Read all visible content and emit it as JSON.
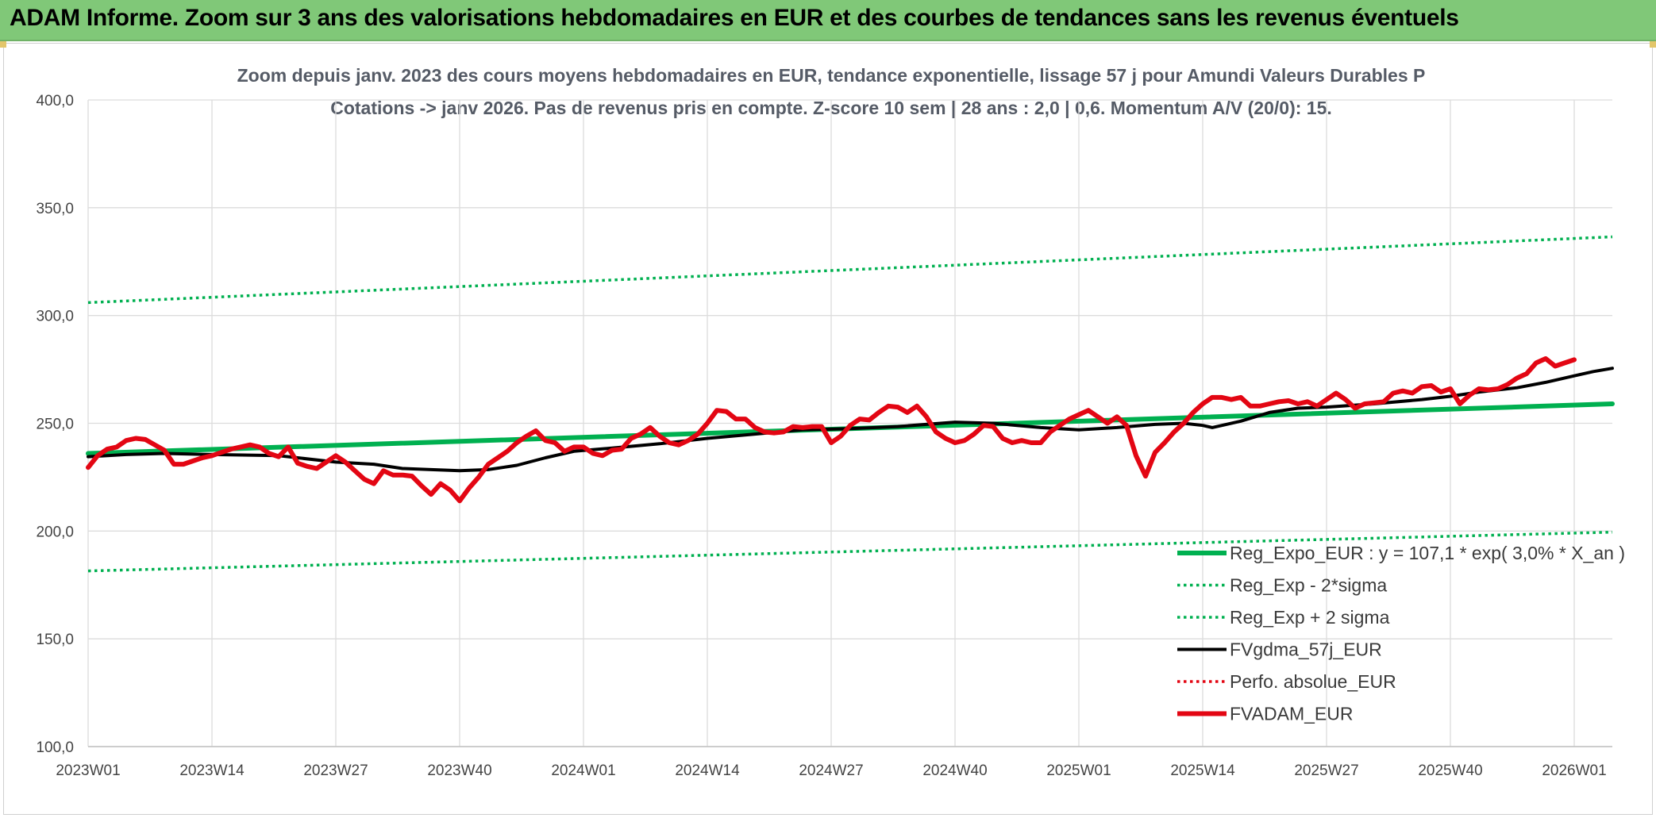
{
  "banner": {
    "title": "ADAM Informe. Zoom sur 3 ans des valorisations hebdomadaires en EUR et des courbes de tendances sans les revenus éventuels",
    "background": "#80c878"
  },
  "chart_data": {
    "type": "line",
    "title": "Zoom depuis janv. 2023 des cours moyens hebdomadaires en EUR, tendance exponentielle, lissage 57 j pour Amundi Valeurs Durables P",
    "subtitle": "Cotations -> janv 2026. Pas de revenus pris en compte. Z-score 10 sem | 28 ans : 2,0 | 0,6. Momentum A/V (20/0): 15.",
    "xlabel": "",
    "ylabel": "",
    "ylim": [
      100,
      400
    ],
    "grid": true,
    "y_ticks": [
      "400,0",
      "350,0",
      "300,0",
      "250,0",
      "200,0",
      "150,0",
      "100,0"
    ],
    "y_tick_values": [
      400,
      350,
      300,
      250,
      200,
      150,
      100
    ],
    "x_tick_labels": [
      "2023W01",
      "2023W14",
      "2023W27",
      "2023W40",
      "2024W01",
      "2024W14",
      "2024W27",
      "2024W40",
      "2025W01",
      "2025W14",
      "2025W27",
      "2025W40",
      "2026W01"
    ],
    "x_tick_weeks": [
      0,
      13,
      26,
      39,
      52,
      65,
      78,
      91,
      104,
      117,
      130,
      143,
      156
    ],
    "week_range": [
      0,
      160
    ],
    "legend_position": "bottom-right",
    "series": [
      {
        "name": "Reg_Expo_EUR : y = 107,1 * exp( 3,0% *  X_an )",
        "color": "#00b050",
        "style": "thick",
        "points": [
          [
            0,
            236.0
          ],
          [
            160,
            259.0
          ]
        ]
      },
      {
        "name": "Reg_Exp - 2*sigma",
        "color": "#00b050",
        "style": "dotted",
        "points": [
          [
            0,
            181.5
          ],
          [
            160,
            199.5
          ]
        ]
      },
      {
        "name": "Reg_Exp + 2 sigma",
        "color": "#00b050",
        "style": "dotted",
        "points": [
          [
            0,
            306.0
          ],
          [
            160,
            336.5
          ]
        ]
      },
      {
        "name": "FVgdma_57j_EUR",
        "color": "#000000",
        "style": "solid",
        "points": [
          [
            0,
            234.5
          ],
          [
            4,
            235.5
          ],
          [
            8,
            236.0
          ],
          [
            13,
            235.5
          ],
          [
            20,
            235.0
          ],
          [
            26,
            232.0
          ],
          [
            30,
            231.0
          ],
          [
            33,
            229.0
          ],
          [
            36,
            228.5
          ],
          [
            39,
            228.0
          ],
          [
            42,
            228.5
          ],
          [
            45,
            230.5
          ],
          [
            48,
            234.0
          ],
          [
            51,
            237.0
          ],
          [
            55,
            238.5
          ],
          [
            60,
            240.5
          ],
          [
            65,
            243.0
          ],
          [
            70,
            245.0
          ],
          [
            75,
            247.0
          ],
          [
            80,
            247.5
          ],
          [
            85,
            248.5
          ],
          [
            91,
            250.5
          ],
          [
            95,
            250.0
          ],
          [
            100,
            248.0
          ],
          [
            104,
            247.0
          ],
          [
            108,
            248.0
          ],
          [
            112,
            249.5
          ],
          [
            115,
            250.0
          ],
          [
            117,
            249.0
          ],
          [
            118,
            248.0
          ],
          [
            121,
            251.0
          ],
          [
            124,
            255.0
          ],
          [
            127,
            257.0
          ],
          [
            130,
            257.5
          ],
          [
            135,
            259.0
          ],
          [
            140,
            261.0
          ],
          [
            143,
            262.5
          ],
          [
            146,
            264.5
          ],
          [
            150,
            266.5
          ],
          [
            153,
            269.0
          ],
          [
            156,
            272.0
          ],
          [
            158,
            274.0
          ],
          [
            160,
            275.5
          ]
        ]
      },
      {
        "name": "Perfo. absolue_EUR",
        "color": "#e30613",
        "style": "dotted",
        "points": []
      },
      {
        "name": "FVADAM_EUR",
        "color": "#e30613",
        "style": "thick",
        "points": [
          [
            0,
            229.5
          ],
          [
            1,
            235.0
          ],
          [
            2,
            238.0
          ],
          [
            3,
            239.0
          ],
          [
            4,
            242.0
          ],
          [
            5,
            243.0
          ],
          [
            6,
            242.5
          ],
          [
            7,
            240.0
          ],
          [
            8,
            237.5
          ],
          [
            9,
            231.0
          ],
          [
            10,
            231.0
          ],
          [
            11,
            232.5
          ],
          [
            12,
            234.0
          ],
          [
            13,
            235.0
          ],
          [
            14,
            236.5
          ],
          [
            15,
            238.0
          ],
          [
            16,
            239.0
          ],
          [
            17,
            240.0
          ],
          [
            18,
            239.0
          ],
          [
            19,
            236.0
          ],
          [
            20,
            234.5
          ],
          [
            21,
            239.0
          ],
          [
            22,
            231.5
          ],
          [
            23,
            230.0
          ],
          [
            24,
            229.0
          ],
          [
            25,
            232.0
          ],
          [
            26,
            235.0
          ],
          [
            27,
            232.0
          ],
          [
            28,
            228.0
          ],
          [
            29,
            224.0
          ],
          [
            30,
            222.0
          ],
          [
            31,
            228.0
          ],
          [
            32,
            226.0
          ],
          [
            33,
            226.0
          ],
          [
            34,
            225.5
          ],
          [
            35,
            221.0
          ],
          [
            36,
            217.0
          ],
          [
            37,
            222.0
          ],
          [
            38,
            219.0
          ],
          [
            39,
            214.0
          ],
          [
            40,
            220.0
          ],
          [
            41,
            225.0
          ],
          [
            42,
            231.0
          ],
          [
            43,
            234.0
          ],
          [
            44,
            237.0
          ],
          [
            45,
            241.0
          ],
          [
            46,
            244.0
          ],
          [
            47,
            246.5
          ],
          [
            48,
            242.0
          ],
          [
            49,
            241.0
          ],
          [
            50,
            237.0
          ],
          [
            51,
            239.0
          ],
          [
            52,
            239.0
          ],
          [
            53,
            236.0
          ],
          [
            54,
            235.0
          ],
          [
            55,
            237.5
          ],
          [
            56,
            238.0
          ],
          [
            57,
            243.0
          ],
          [
            58,
            245.0
          ],
          [
            59,
            248.0
          ],
          [
            60,
            244.0
          ],
          [
            61,
            241.0
          ],
          [
            62,
            240.0
          ],
          [
            63,
            242.0
          ],
          [
            64,
            245.0
          ],
          [
            65,
            250.0
          ],
          [
            66,
            256.0
          ],
          [
            67,
            255.5
          ],
          [
            68,
            252.0
          ],
          [
            69,
            252.0
          ],
          [
            70,
            248.0
          ],
          [
            71,
            246.0
          ],
          [
            72,
            245.5
          ],
          [
            73,
            246.0
          ],
          [
            74,
            248.5
          ],
          [
            75,
            248.0
          ],
          [
            76,
            248.5
          ],
          [
            77,
            248.5
          ],
          [
            78,
            241.0
          ],
          [
            79,
            244.0
          ],
          [
            80,
            249.0
          ],
          [
            81,
            252.0
          ],
          [
            82,
            251.5
          ],
          [
            83,
            255.0
          ],
          [
            84,
            258.0
          ],
          [
            85,
            257.5
          ],
          [
            86,
            255.0
          ],
          [
            87,
            258.0
          ],
          [
            88,
            253.0
          ],
          [
            89,
            246.0
          ],
          [
            90,
            243.0
          ],
          [
            91,
            241.0
          ],
          [
            92,
            242.0
          ],
          [
            93,
            245.0
          ],
          [
            94,
            249.0
          ],
          [
            95,
            248.5
          ],
          [
            96,
            243.0
          ],
          [
            97,
            241.0
          ],
          [
            98,
            242.0
          ],
          [
            99,
            241.0
          ],
          [
            100,
            241.0
          ],
          [
            101,
            246.0
          ],
          [
            102,
            249.0
          ],
          [
            103,
            252.0
          ],
          [
            104,
            254.0
          ],
          [
            105,
            256.0
          ],
          [
            106,
            253.0
          ],
          [
            107,
            250.0
          ],
          [
            108,
            253.0
          ],
          [
            109,
            249.0
          ],
          [
            110,
            235.0
          ],
          [
            111,
            225.5
          ],
          [
            112,
            236.5
          ],
          [
            113,
            241.0
          ],
          [
            114,
            246.0
          ],
          [
            115,
            250.0
          ],
          [
            116,
            255.0
          ],
          [
            117,
            259.0
          ],
          [
            118,
            262.0
          ],
          [
            119,
            262.0
          ],
          [
            120,
            261.0
          ],
          [
            121,
            262.0
          ],
          [
            122,
            258.0
          ],
          [
            123,
            258.0
          ],
          [
            124,
            259.0
          ],
          [
            125,
            260.0
          ],
          [
            126,
            260.5
          ],
          [
            127,
            259.0
          ],
          [
            128,
            260.0
          ],
          [
            129,
            258.0
          ],
          [
            130,
            261.0
          ],
          [
            131,
            264.0
          ],
          [
            132,
            261.0
          ],
          [
            133,
            257.0
          ],
          [
            134,
            259.0
          ],
          [
            135,
            259.5
          ],
          [
            136,
            260.0
          ],
          [
            137,
            264.0
          ],
          [
            138,
            265.0
          ],
          [
            139,
            264.0
          ],
          [
            140,
            267.0
          ],
          [
            141,
            267.5
          ],
          [
            142,
            264.5
          ],
          [
            143,
            266.0
          ],
          [
            144,
            259.0
          ],
          [
            145,
            263.0
          ],
          [
            146,
            266.0
          ],
          [
            147,
            265.5
          ],
          [
            148,
            266.0
          ],
          [
            149,
            268.0
          ],
          [
            150,
            271.0
          ],
          [
            151,
            273.0
          ],
          [
            152,
            278.0
          ],
          [
            153,
            280.0
          ],
          [
            154,
            276.5
          ],
          [
            155,
            278.0
          ],
          [
            156,
            279.5
          ]
        ]
      }
    ]
  }
}
